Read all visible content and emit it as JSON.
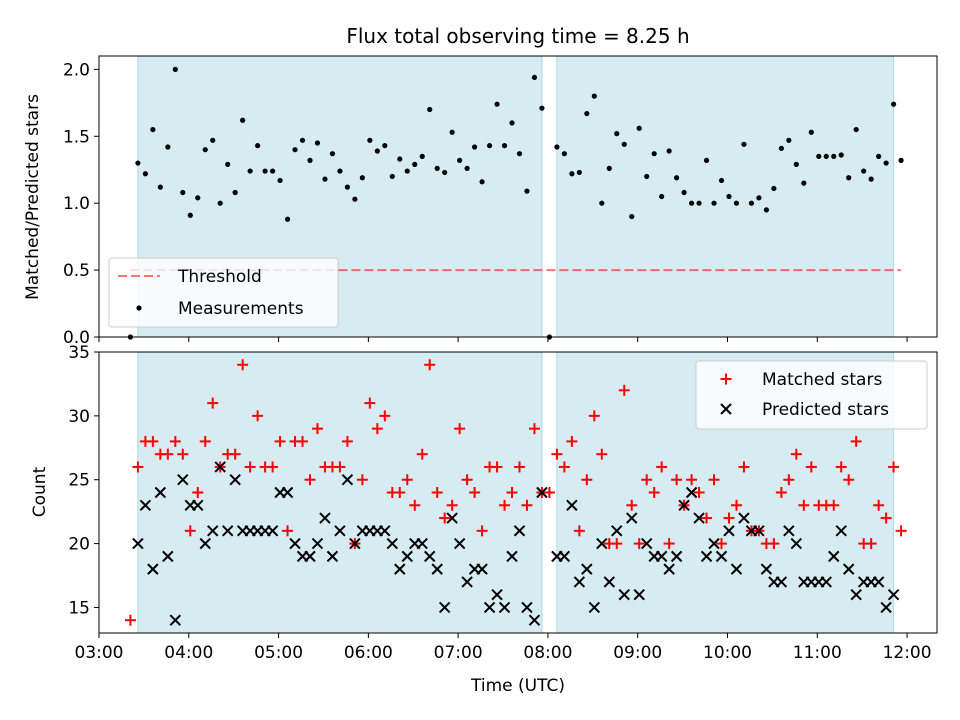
{
  "title": "Flux total observing time = 8.25 h",
  "colors": {
    "span_fill": "#add8e6",
    "threshold": "#ff0000",
    "measurement": "#000000",
    "matched": "#ff0000",
    "predicted": "#000000"
  },
  "chart_data": [
    {
      "type": "scatter",
      "ylabel": "Matched/Predicted stars",
      "xlabel": "",
      "xlim": [
        "03:00",
        "12:20"
      ],
      "ylim": [
        0,
        2.1
      ],
      "yticks": [
        "0.0",
        "0.5",
        "1.0",
        "1.5",
        "2.0"
      ],
      "threshold": 0.5,
      "observing_spans": [
        [
          "03:26",
          "07:56"
        ],
        [
          "08:06",
          "11:51"
        ]
      ],
      "legend": {
        "placement": "lower-left",
        "entries": [
          "Threshold",
          "Measurements"
        ]
      },
      "series": [
        {
          "name": "Measurements",
          "x": [
            "03:21",
            "03:26",
            "03:31",
            "03:36",
            "03:41",
            "03:46",
            "03:51",
            "03:56",
            "04:01",
            "04:06",
            "04:11",
            "04:16",
            "04:21",
            "04:26",
            "04:31",
            "04:36",
            "04:41",
            "04:46",
            "04:51",
            "04:56",
            "05:01",
            "05:06",
            "05:11",
            "05:16",
            "05:21",
            "05:26",
            "05:31",
            "05:36",
            "05:41",
            "05:46",
            "05:51",
            "05:56",
            "06:01",
            "06:06",
            "06:11",
            "06:16",
            "06:21",
            "06:26",
            "06:31",
            "06:36",
            "06:41",
            "06:46",
            "06:51",
            "06:56",
            "07:01",
            "07:06",
            "07:11",
            "07:16",
            "07:21",
            "07:26",
            "07:31",
            "07:36",
            "07:41",
            "07:46",
            "07:51",
            "07:56",
            "08:01",
            "08:06",
            "08:11",
            "08:16",
            "08:21",
            "08:26",
            "08:31",
            "08:36",
            "08:41",
            "08:46",
            "08:51",
            "08:56",
            "09:01",
            "09:06",
            "09:11",
            "09:16",
            "09:21",
            "09:26",
            "09:31",
            "09:36",
            "09:41",
            "09:46",
            "09:51",
            "09:56",
            "10:01",
            "10:06",
            "10:11",
            "10:16",
            "10:21",
            "10:26",
            "10:31",
            "10:36",
            "10:41",
            "10:46",
            "10:51",
            "10:56",
            "11:01",
            "11:06",
            "11:11",
            "11:16",
            "11:21",
            "11:26",
            "11:31",
            "11:36",
            "11:41",
            "11:46",
            "11:51",
            "11:56"
          ],
          "y": [
            0.0,
            1.3,
            1.22,
            1.55,
            1.12,
            1.42,
            2.0,
            1.08,
            0.91,
            1.04,
            1.4,
            1.47,
            1.0,
            1.29,
            1.08,
            1.62,
            1.24,
            1.43,
            1.24,
            1.24,
            1.17,
            0.88,
            1.4,
            1.47,
            1.32,
            1.45,
            1.18,
            1.37,
            1.24,
            1.12,
            1.03,
            1.19,
            1.47,
            1.39,
            1.43,
            1.2,
            1.33,
            1.24,
            1.29,
            1.35,
            1.7,
            1.26,
            1.23,
            1.53,
            1.32,
            1.26,
            1.42,
            1.16,
            1.43,
            1.74,
            1.43,
            1.6,
            1.37,
            1.09,
            1.94,
            1.71,
            0.0,
            1.42,
            1.37,
            1.22,
            1.23,
            1.67,
            1.8,
            1.0,
            1.26,
            1.52,
            1.44,
            0.9,
            1.56,
            1.2,
            1.37,
            1.05,
            1.39,
            1.19,
            1.08,
            1.0,
            1.0,
            1.32,
            1.0,
            1.17,
            1.05,
            1.0,
            1.44,
            1.0,
            1.04,
            0.95,
            1.11,
            1.41,
            1.47,
            1.29,
            1.15,
            1.53,
            1.35,
            1.35,
            1.35,
            1.36,
            1.19,
            1.55,
            1.24,
            1.18,
            1.35,
            1.3,
            1.74,
            1.32
          ]
        }
      ]
    },
    {
      "type": "scatter",
      "ylabel": "Count",
      "xlabel": "Time (UTC)",
      "xlim": [
        "03:00",
        "12:20"
      ],
      "ylim": [
        13,
        35
      ],
      "yticks": [
        "15",
        "20",
        "25",
        "30",
        "35"
      ],
      "xticks": [
        "03:00",
        "04:00",
        "05:00",
        "06:00",
        "07:00",
        "08:00",
        "09:00",
        "10:00",
        "11:00",
        "12:00"
      ],
      "observing_spans": [
        [
          "03:26",
          "07:56"
        ],
        [
          "08:06",
          "11:51"
        ]
      ],
      "legend": {
        "placement": "top-right",
        "entries": [
          "Matched stars",
          "Predicted stars"
        ]
      },
      "series": [
        {
          "name": "Matched stars",
          "x": [
            "03:21",
            "03:26",
            "03:31",
            "03:36",
            "03:41",
            "03:46",
            "03:51",
            "03:56",
            "04:01",
            "04:06",
            "04:11",
            "04:16",
            "04:21",
            "04:26",
            "04:31",
            "04:36",
            "04:41",
            "04:46",
            "04:51",
            "04:56",
            "05:01",
            "05:06",
            "05:11",
            "05:16",
            "05:21",
            "05:26",
            "05:31",
            "05:36",
            "05:41",
            "05:46",
            "05:51",
            "05:56",
            "06:01",
            "06:06",
            "06:11",
            "06:16",
            "06:21",
            "06:26",
            "06:31",
            "06:36",
            "06:41",
            "06:46",
            "06:51",
            "06:56",
            "07:01",
            "07:06",
            "07:11",
            "07:16",
            "07:21",
            "07:26",
            "07:31",
            "07:36",
            "07:41",
            "07:46",
            "07:51",
            "07:56",
            "08:01",
            "08:06",
            "08:11",
            "08:16",
            "08:21",
            "08:26",
            "08:31",
            "08:36",
            "08:41",
            "08:46",
            "08:51",
            "08:56",
            "09:01",
            "09:06",
            "09:11",
            "09:16",
            "09:21",
            "09:26",
            "09:31",
            "09:36",
            "09:41",
            "09:46",
            "09:51",
            "09:56",
            "10:01",
            "10:06",
            "10:11",
            "10:16",
            "10:21",
            "10:26",
            "10:31",
            "10:36",
            "10:41",
            "10:46",
            "10:51",
            "10:56",
            "11:01",
            "11:06",
            "11:11",
            "11:16",
            "11:21",
            "11:26",
            "11:31",
            "11:36",
            "11:41",
            "11:46",
            "11:51",
            "11:56"
          ],
          "y": [
            14,
            26,
            28,
            28,
            27,
            27,
            28,
            27,
            21,
            24,
            28,
            31,
            26,
            27,
            27,
            34,
            26,
            30,
            26,
            26,
            28,
            21,
            28,
            28,
            25,
            29,
            26,
            26,
            26,
            28,
            20,
            25,
            31,
            29,
            30,
            24,
            24,
            25,
            23,
            27,
            34,
            24,
            22,
            23,
            29,
            25,
            24,
            21,
            26,
            26,
            23,
            24,
            26,
            23,
            29,
            24,
            24,
            27,
            26,
            28,
            21,
            25,
            30,
            27,
            20,
            20,
            32,
            23,
            20,
            25,
            24,
            26,
            20,
            25,
            23,
            25,
            24,
            22,
            25,
            20,
            22,
            23,
            26,
            21,
            21,
            20,
            20,
            24,
            25,
            27,
            23,
            26,
            23,
            23,
            23,
            26,
            25,
            28,
            20,
            20,
            23,
            22,
            26,
            21
          ]
        },
        {
          "name": "Predicted stars",
          "x": [
            "03:26",
            "03:31",
            "03:36",
            "03:41",
            "03:46",
            "03:51",
            "03:56",
            "04:01",
            "04:06",
            "04:11",
            "04:16",
            "04:21",
            "04:26",
            "04:31",
            "04:36",
            "04:41",
            "04:46",
            "04:51",
            "04:56",
            "05:01",
            "05:06",
            "05:11",
            "05:16",
            "05:21",
            "05:26",
            "05:31",
            "05:36",
            "05:41",
            "05:46",
            "05:51",
            "05:56",
            "06:01",
            "06:06",
            "06:11",
            "06:16",
            "06:21",
            "06:26",
            "06:31",
            "06:36",
            "06:41",
            "06:46",
            "06:51",
            "06:56",
            "07:01",
            "07:06",
            "07:11",
            "07:16",
            "07:21",
            "07:26",
            "07:31",
            "07:36",
            "07:41",
            "07:46",
            "07:51",
            "07:56",
            "08:06",
            "08:11",
            "08:16",
            "08:21",
            "08:26",
            "08:31",
            "08:36",
            "08:41",
            "08:46",
            "08:51",
            "08:56",
            "09:01",
            "09:06",
            "09:11",
            "09:16",
            "09:21",
            "09:26",
            "09:31",
            "09:36",
            "09:41",
            "09:46",
            "09:51",
            "09:56",
            "10:01",
            "10:06",
            "10:11",
            "10:16",
            "10:21",
            "10:26",
            "10:31",
            "10:36",
            "10:41",
            "10:46",
            "10:51",
            "10:56",
            "11:01",
            "11:06",
            "11:11",
            "11:16",
            "11:21",
            "11:26",
            "11:31",
            "11:36",
            "11:41",
            "11:46",
            "11:51"
          ],
          "y": [
            20,
            23,
            18,
            24,
            19,
            14,
            25,
            23,
            23,
            20,
            21,
            26,
            21,
            25,
            21,
            21,
            21,
            21,
            21,
            24,
            24,
            20,
            19,
            19,
            20,
            22,
            19,
            21,
            25,
            20,
            21,
            21,
            21,
            21,
            20,
            18,
            19,
            20,
            20,
            19,
            18,
            15,
            22,
            20,
            17,
            18,
            18,
            15,
            16,
            15,
            19,
            21,
            15,
            14,
            24,
            19,
            19,
            23,
            17,
            18,
            15,
            20,
            17,
            21,
            16,
            22,
            16,
            20,
            19,
            19,
            18,
            19,
            23,
            24,
            22,
            19,
            20,
            19,
            21,
            18,
            22,
            21,
            21,
            18,
            17,
            17,
            21,
            20,
            17,
            17,
            17,
            17,
            19,
            21,
            18,
            16,
            17,
            17,
            17,
            15,
            16
          ]
        }
      ]
    }
  ]
}
